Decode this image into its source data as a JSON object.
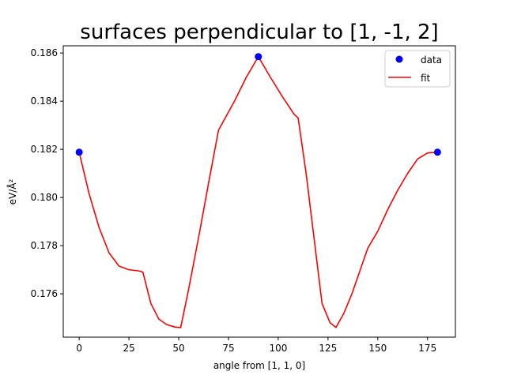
{
  "chart_data": {
    "type": "line",
    "title": "surfaces perpendicular to [1, -1, 2]",
    "xlabel": "angle from [1, 1, 0]",
    "ylabel": "eV/Å²",
    "xlim": [
      -8,
      189
    ],
    "ylim": [
      0.1742,
      0.1863
    ],
    "x_ticks": [
      0,
      25,
      50,
      75,
      100,
      125,
      150,
      175
    ],
    "y_ticks": [
      0.176,
      0.178,
      0.18,
      0.182,
      0.184,
      0.186
    ],
    "x_tick_labels": [
      "0",
      "25",
      "50",
      "75",
      "100",
      "125",
      "150",
      "175"
    ],
    "y_tick_labels": [
      "0.176",
      "0.178",
      "0.180",
      "0.182",
      "0.184",
      "0.186"
    ],
    "grid": false,
    "legend_position": "top-right",
    "series": [
      {
        "name": "data",
        "kind": "scatter",
        "color": "#0000ff",
        "x": [
          0,
          90,
          180
        ],
        "y": [
          0.18188,
          0.18585,
          0.18188
        ]
      },
      {
        "name": "fit",
        "kind": "line",
        "color": "#ff0000",
        "x": [
          0,
          5,
          10,
          15,
          20,
          25,
          30,
          32,
          36,
          40,
          44,
          48,
          51,
          55,
          60,
          65,
          70,
          72,
          78,
          84,
          90,
          96,
          102,
          108,
          110,
          114,
          118,
          122,
          126,
          129,
          133,
          137,
          141,
          145,
          150,
          155,
          160,
          165,
          170,
          175,
          180
        ],
        "y": [
          0.18188,
          0.18015,
          0.17875,
          0.1777,
          0.17715,
          0.177,
          0.17695,
          0.1769,
          0.1756,
          0.17495,
          0.17472,
          0.17462,
          0.1746,
          0.1762,
          0.17835,
          0.1806,
          0.1828,
          0.1831,
          0.184,
          0.185,
          0.18585,
          0.185,
          0.1842,
          0.18345,
          0.1833,
          0.181,
          0.1783,
          0.1756,
          0.1748,
          0.1746,
          0.1752,
          0.176,
          0.17695,
          0.1779,
          0.1786,
          0.1795,
          0.1803,
          0.181,
          0.1816,
          0.18185,
          0.18188
        ]
      }
    ]
  }
}
